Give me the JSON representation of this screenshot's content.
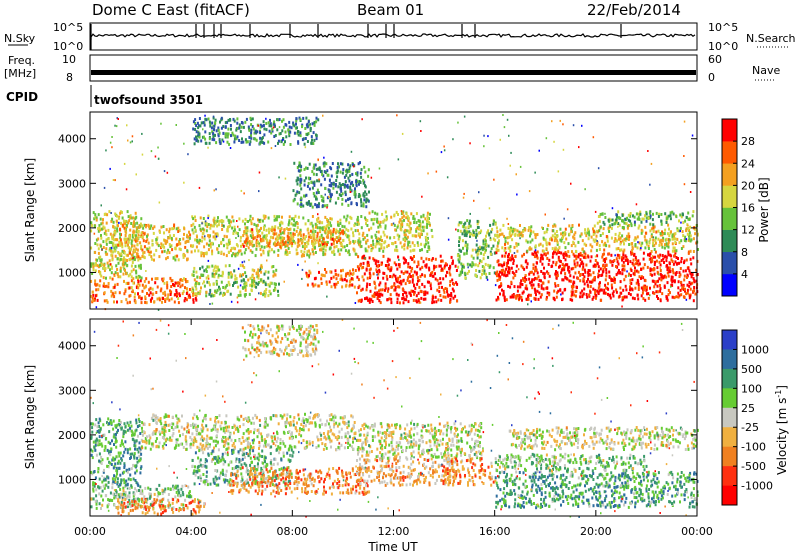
{
  "header": {
    "title": "Dome C East (fitACF)",
    "beam": "Beam 01",
    "date": "22/Feb/2014"
  },
  "top_panels": {
    "nsky_label": "N.Sky",
    "nsearch_label": "N.Search",
    "nsky_ticks": [
      "10^5",
      "10^0"
    ],
    "nsky_right_ticks": [
      "10^5",
      "10^0"
    ],
    "freq_label": "Freq.",
    "freq_unit": "[MHz]",
    "freq_ticks": [
      "10",
      "8"
    ],
    "nave_label": "Nave",
    "nave_ticks": [
      "60",
      "0"
    ],
    "cpid_label": "CPID",
    "cpid_value": "twofsound 3501"
  },
  "chart_data": [
    {
      "type": "heatmap",
      "name": "power-panel",
      "ylabel": "Slant Range [km]",
      "xlabel": "",
      "xlim": [
        0,
        24
      ],
      "ylim": [
        180,
        4600
      ],
      "yticks": [
        1000,
        2000,
        3000,
        4000
      ],
      "colorbar_label": "Power [dB]",
      "colorbar_ticks": [
        "4",
        "8",
        "12",
        "16",
        "20",
        "24",
        "28"
      ],
      "colorbar_range": [
        0,
        32
      ],
      "colors": [
        "#0000ff",
        "#2a4faa",
        "#2e8b57",
        "#66c23a",
        "#d6d640",
        "#f4a020",
        "#ff5a00",
        "#ff0000"
      ],
      "regions": [
        {
          "t0": 0.0,
          "t1": 4.3,
          "r0": 350,
          "r1": 900,
          "level": 0.78
        },
        {
          "t0": 0.0,
          "t1": 2.0,
          "r0": 900,
          "r1": 2400,
          "level": 0.55
        },
        {
          "t0": 0.8,
          "t1": 4.0,
          "r0": 1300,
          "r1": 2100,
          "level": 0.62
        },
        {
          "t0": 4.0,
          "t1": 7.5,
          "r0": 500,
          "r1": 1200,
          "level": 0.5
        },
        {
          "t0": 4.0,
          "t1": 10.5,
          "r0": 1400,
          "r1": 2300,
          "level": 0.55
        },
        {
          "t0": 6.0,
          "t1": 10.0,
          "r0": 1600,
          "r1": 2000,
          "level": 0.72
        },
        {
          "t0": 8.5,
          "t1": 10.5,
          "r0": 700,
          "r1": 1100,
          "level": 0.8
        },
        {
          "t0": 10.5,
          "t1": 14.5,
          "r0": 350,
          "r1": 1400,
          "level": 0.92
        },
        {
          "t0": 10.5,
          "t1": 13.5,
          "r0": 1500,
          "r1": 2400,
          "level": 0.55
        },
        {
          "t0": 14.5,
          "t1": 16.0,
          "r0": 900,
          "r1": 2200,
          "level": 0.45
        },
        {
          "t0": 16.0,
          "t1": 24.0,
          "r0": 400,
          "r1": 1500,
          "level": 0.93
        },
        {
          "t0": 16.0,
          "t1": 24.0,
          "r0": 1500,
          "r1": 2100,
          "level": 0.6
        },
        {
          "t0": 20.0,
          "t1": 24.0,
          "r0": 2100,
          "r1": 2400,
          "level": 0.4
        },
        {
          "t0": 4.0,
          "t1": 9.0,
          "r0": 3900,
          "r1": 4500,
          "level": 0.3
        },
        {
          "t0": 8.0,
          "t1": 11.0,
          "r0": 2500,
          "r1": 3500,
          "level": 0.3
        }
      ]
    },
    {
      "type": "heatmap",
      "name": "velocity-panel",
      "ylabel": "Slant Range [km]",
      "xlabel": "Time UT",
      "xlim": [
        0,
        24
      ],
      "ylim": [
        180,
        4600
      ],
      "xticks": [
        "00:00",
        "04:00",
        "08:00",
        "12:00",
        "16:00",
        "20:00",
        "00:00"
      ],
      "yticks": [
        1000,
        2000,
        3000,
        4000
      ],
      "colorbar_label": "Velocity [m s^-1]",
      "colorbar_ticks": [
        "1000",
        "500",
        "100",
        "25",
        "-25",
        "-100",
        "-500",
        "-1000"
      ],
      "colors": [
        "#2b3fc8",
        "#2e6e9e",
        "#3a9a6a",
        "#66cc33",
        "#c8c8c0",
        "#f0b040",
        "#f08020",
        "#ff3010",
        "#ff0000"
      ],
      "regions": [
        {
          "t0": 0.0,
          "t1": 4.0,
          "r0": 380,
          "r1": 900,
          "level": 0.4
        },
        {
          "t0": 1.0,
          "t1": 4.5,
          "r0": 250,
          "r1": 600,
          "level": 0.7
        },
        {
          "t0": 0.0,
          "t1": 2.0,
          "r0": 900,
          "r1": 2400,
          "level": 0.3
        },
        {
          "t0": 2.0,
          "t1": 10.5,
          "r0": 1700,
          "r1": 2500,
          "level": 0.5
        },
        {
          "t0": 4.0,
          "t1": 8.0,
          "r0": 900,
          "r1": 1700,
          "level": 0.35
        },
        {
          "t0": 5.5,
          "t1": 11.0,
          "r0": 700,
          "r1": 1300,
          "level": 0.7
        },
        {
          "t0": 10.5,
          "t1": 14.5,
          "r0": 900,
          "r1": 1500,
          "level": 0.62
        },
        {
          "t0": 10.5,
          "t1": 15.5,
          "r0": 1500,
          "r1": 2300,
          "level": 0.5
        },
        {
          "t0": 14.0,
          "t1": 16.0,
          "r0": 900,
          "r1": 1500,
          "level": 0.7
        },
        {
          "t0": 16.0,
          "t1": 24.0,
          "r0": 400,
          "r1": 1200,
          "level": 0.3
        },
        {
          "t0": 16.5,
          "t1": 24.0,
          "r0": 1700,
          "r1": 2200,
          "level": 0.5
        },
        {
          "t0": 16.0,
          "t1": 22.0,
          "r0": 1200,
          "r1": 1600,
          "level": 0.4
        },
        {
          "t0": 6.0,
          "t1": 9.0,
          "r0": 3800,
          "r1": 4500,
          "level": 0.55
        }
      ]
    }
  ]
}
